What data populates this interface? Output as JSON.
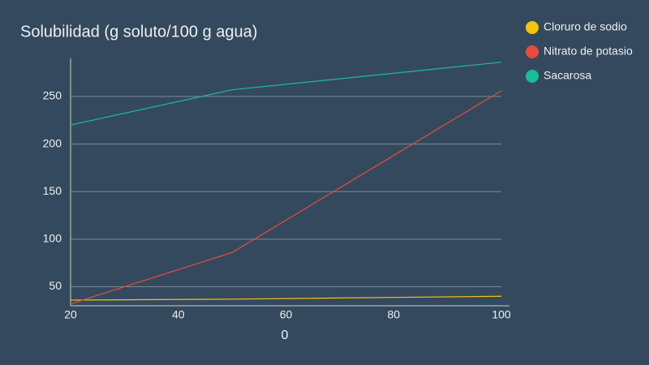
{
  "chart_data": {
    "type": "line",
    "title": "Solubilidad (g soluto/100 g agua)",
    "x_label": "0",
    "x": [
      20,
      50,
      100
    ],
    "series": [
      {
        "name": "Cloruro de sodio",
        "color": "#f1c40f",
        "values": [
          36,
          37,
          40
        ]
      },
      {
        "name": "Nitrato de potasio",
        "color": "#e74c3c",
        "values": [
          32,
          86,
          256
        ]
      },
      {
        "name": "Sacarosa",
        "color": "#1abc9c",
        "values": [
          220,
          257,
          286
        ]
      }
    ],
    "xlim": [
      20,
      100
    ],
    "xticks": [
      20,
      40,
      60,
      80,
      100
    ],
    "ylim": [
      30,
      290
    ],
    "yticks": [
      50,
      100,
      150,
      200,
      250
    ],
    "grid": true,
    "legend": "right"
  }
}
